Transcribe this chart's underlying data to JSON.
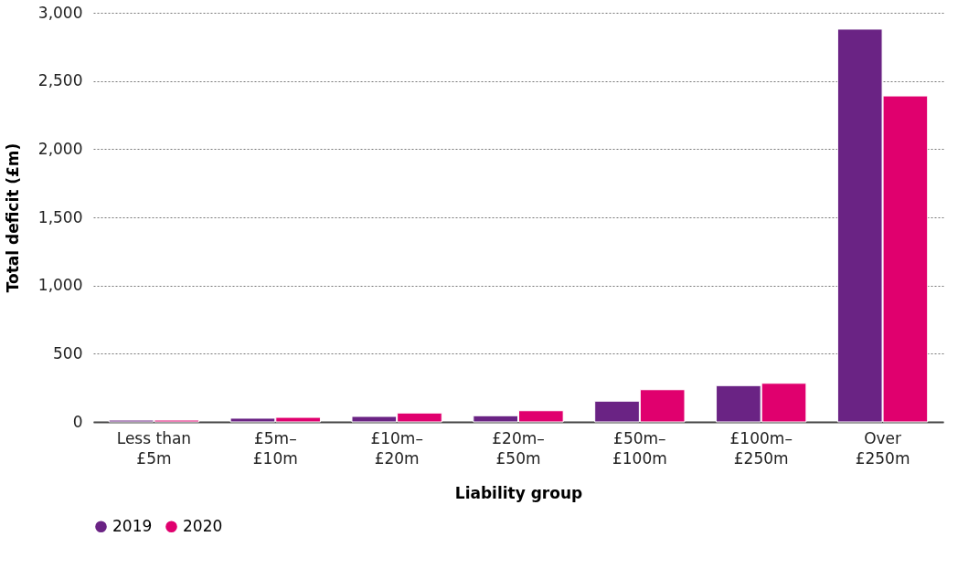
{
  "chart_data": {
    "type": "bar",
    "xlabel": "Liability group",
    "ylabel": "Total deficit (£m)",
    "categories": [
      "Less than £5m",
      "£5m–£10m",
      "£10m–£20m",
      "£20m–£50m",
      "£50m–£100m",
      "£100m–£250m",
      "Over £250m"
    ],
    "series": [
      {
        "name": "2019",
        "color": "#6a2384",
        "values": [
          13,
          27,
          40,
          45,
          152,
          266,
          2880
        ]
      },
      {
        "name": "2020",
        "color": "#e0006e",
        "values": [
          13,
          33,
          65,
          82,
          236,
          283,
          2390
        ]
      }
    ],
    "ylim": [
      0,
      3000
    ],
    "yticks": [
      0,
      500,
      {
        "value": 1000,
        "label": "1,000"
      },
      {
        "value": 1500,
        "label": "1,500"
      },
      {
        "value": 2000,
        "label": "2,000"
      },
      {
        "value": 2500,
        "label": "2,500"
      },
      {
        "value": 3000,
        "label": "3,000"
      }
    ],
    "grid": "y",
    "legend": "bottom left"
  }
}
